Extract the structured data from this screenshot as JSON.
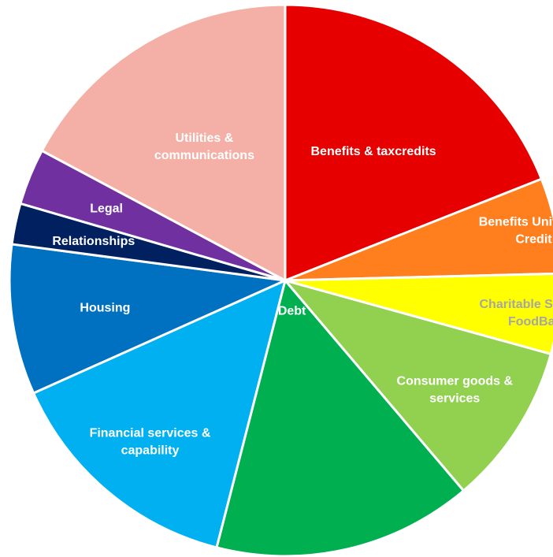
{
  "chart_data": {
    "type": "pie",
    "title": "",
    "legend": "none",
    "slices": [
      {
        "label": "Benefits & taxcredits",
        "value": 19.0,
        "color": "#e60000",
        "label_color": "#ffffff"
      },
      {
        "label": "Benefits Universal Credit",
        "value": 5.6,
        "color": "#ff7f1e",
        "label_color": "#ffffff"
      },
      {
        "label": "Charitable Support & FoodBanks",
        "value": 4.7,
        "color": "#ffff00",
        "label_color": "#a6a6a6"
      },
      {
        "label": "Consumer goods & services",
        "value": 9.5,
        "color": "#92d050",
        "label_color": "#ffffff"
      },
      {
        "label": "Debt",
        "value": 15.2,
        "color": "#00b050",
        "label_color": "#ffffff"
      },
      {
        "label": "Financial services & capability",
        "value": 14.3,
        "color": "#00b0f0",
        "label_color": "#ffffff"
      },
      {
        "label": "Housing",
        "value": 8.8,
        "color": "#0070c0",
        "label_color": "#ffffff"
      },
      {
        "label": "Relationships",
        "value": 2.4,
        "color": "#002060",
        "label_color": "#ffffff"
      },
      {
        "label": "Legal",
        "value": 3.3,
        "color": "#7030a0",
        "label_color": "#ffffff"
      },
      {
        "label": "Utilities & communications",
        "value": 17.2,
        "color": "#f4b0a6",
        "label_color": "#ffffff"
      }
    ]
  }
}
